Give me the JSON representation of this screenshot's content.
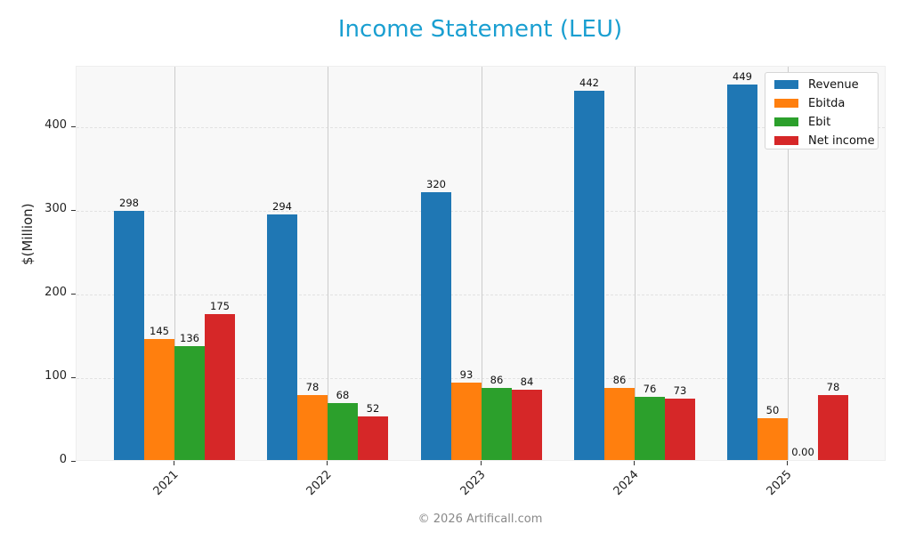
{
  "title": "Income Statement (LEU)",
  "footer": "© 2026 Artificall.com",
  "colors": {
    "title": "#1a9fd1",
    "Revenue": "#1f77b4",
    "Ebitda": "#ff7f0e",
    "Ebit": "#2ca02c",
    "Net income": "#d62728"
  },
  "legend": {
    "items": [
      {
        "label": "Revenue",
        "color": "#1f77b4"
      },
      {
        "label": "Ebitda",
        "color": "#ff7f0e"
      },
      {
        "label": "Ebit",
        "color": "#2ca02c"
      },
      {
        "label": "Net income",
        "color": "#d62728"
      }
    ]
  },
  "chart_data": {
    "type": "bar",
    "title": "Income Statement (LEU)",
    "xlabel": "",
    "ylabel": "$(Million)",
    "categories": [
      "2021",
      "2022",
      "2023",
      "2024",
      "2025"
    ],
    "series": [
      {
        "name": "Revenue",
        "values": [
          298,
          294,
          320,
          442,
          449
        ],
        "labels": [
          "298",
          "294",
          "320",
          "442",
          "449"
        ]
      },
      {
        "name": "Ebitda",
        "values": [
          145,
          78,
          93,
          86,
          50
        ],
        "labels": [
          "145",
          "78",
          "93",
          "86",
          "50"
        ]
      },
      {
        "name": "Ebit",
        "values": [
          136,
          68,
          86,
          76,
          0
        ],
        "labels": [
          "136",
          "68",
          "86",
          "76",
          "0.00"
        ]
      },
      {
        "name": "Net income",
        "values": [
          175,
          52,
          84,
          73,
          78
        ],
        "labels": [
          "175",
          "52",
          "84",
          "73",
          "78"
        ]
      }
    ],
    "yticks": [
      0,
      100,
      200,
      300,
      400
    ],
    "ylim": [
      0,
      472
    ],
    "grid": true,
    "legend_position": "upper right"
  }
}
